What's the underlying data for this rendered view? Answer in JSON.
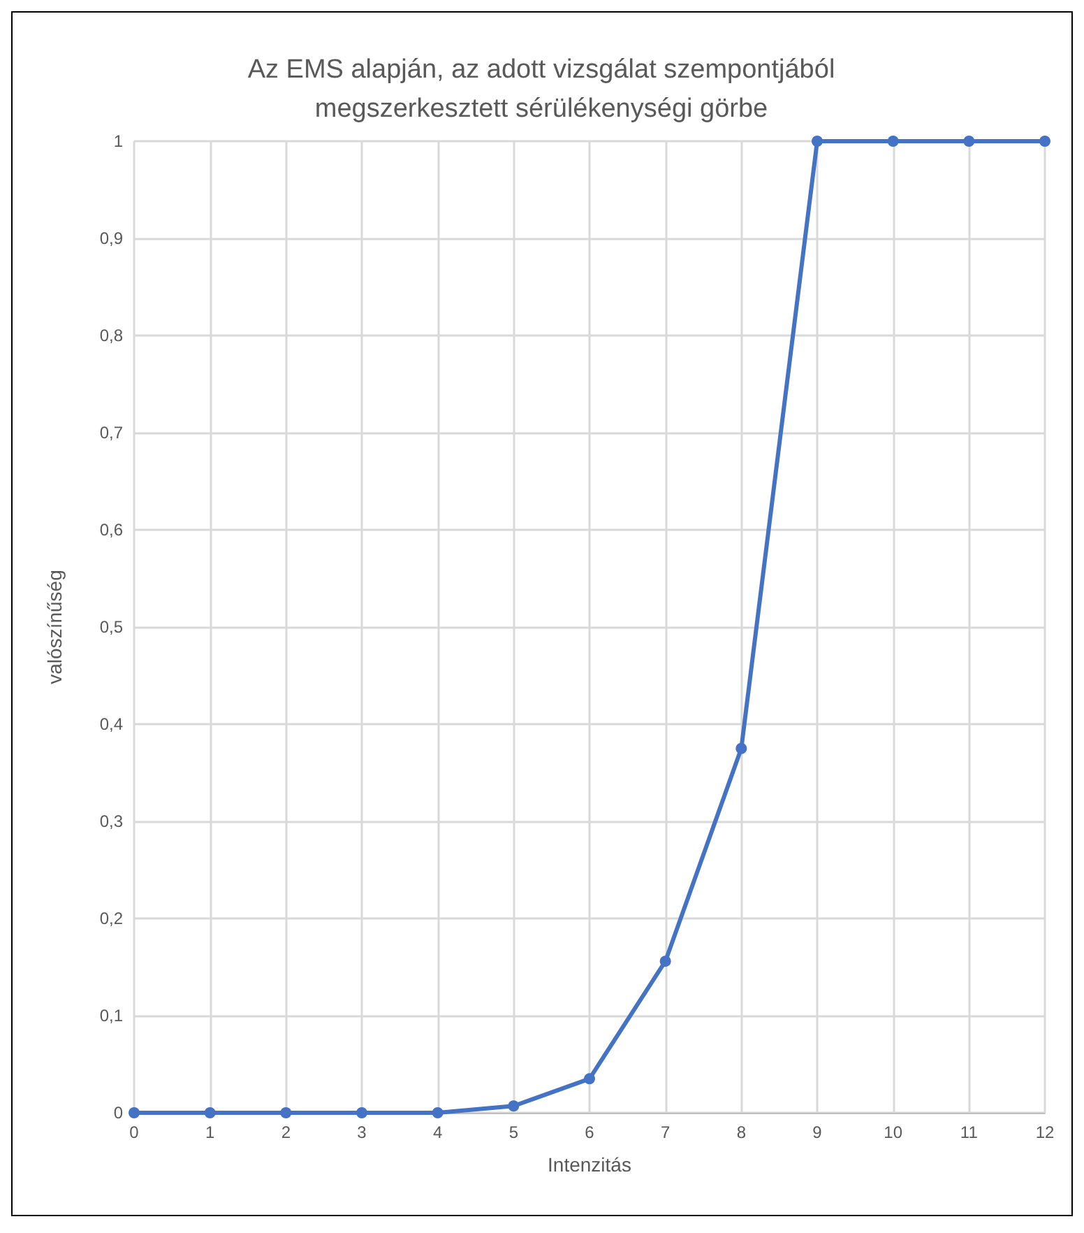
{
  "chart_data": {
    "type": "line",
    "title": "Az EMS alapján, az adott vizsgálat szempontjából\nmegszerkesztett sérülékenységi görbe",
    "xlabel": "Intenzitás",
    "ylabel": "valószínűség",
    "x": [
      0,
      1,
      2,
      3,
      4,
      5,
      6,
      7,
      8,
      9,
      10,
      11,
      12
    ],
    "series": [
      {
        "color": "#4472c4",
        "values": [
          0,
          0,
          0,
          0,
          0,
          0.007,
          0.035,
          0.156,
          0.375,
          1,
          1,
          1,
          1
        ]
      }
    ],
    "xlim": [
      0,
      12
    ],
    "xticks": [
      0,
      1,
      2,
      3,
      4,
      5,
      6,
      7,
      8,
      9,
      10,
      11,
      12
    ],
    "ylim": [
      0,
      1
    ],
    "yticks": [
      {
        "value": 0,
        "label": "0"
      },
      {
        "value": 0.1,
        "label": "0,1"
      },
      {
        "value": 0.2,
        "label": "0,2"
      },
      {
        "value": 0.3,
        "label": "0,3"
      },
      {
        "value": 0.4,
        "label": "0,4"
      },
      {
        "value": 0.5,
        "label": "0,5"
      },
      {
        "value": 0.6,
        "label": "0,6"
      },
      {
        "value": 0.7,
        "label": "0,7"
      },
      {
        "value": 0.8,
        "label": "0,8"
      },
      {
        "value": 0.9,
        "label": "0,9"
      },
      {
        "value": 1,
        "label": "1"
      }
    ],
    "grid": true,
    "marker": "circle",
    "line_style": "solid"
  }
}
